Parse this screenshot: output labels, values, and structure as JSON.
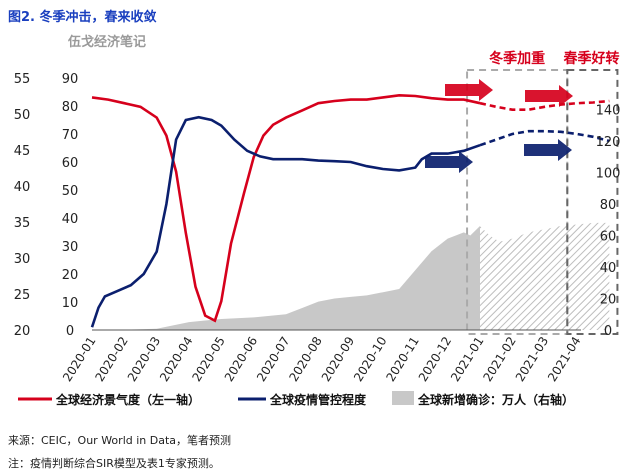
{
  "figure_title": "图2. 冬季冲击，春来收敛",
  "source": "来源：CEIC，Our World in Data，笔者预测",
  "footnote": "注：疫情判断综合SIR模型及表1专家预测。",
  "colors": {
    "pmi": "#d6001c",
    "stringency": "#0b1f6e",
    "cases": "#c8c8c8",
    "title": "#1a3fbf",
    "box": "#888888"
  },
  "chart_data": {
    "type": "line",
    "title": "",
    "watermark": "伍戈经济笔记",
    "x_labels": [
      "2020-01",
      "2020-02",
      "2020-03",
      "2020-04",
      "2020-05",
      "2020-06",
      "2020-07",
      "2020-08",
      "2020-09",
      "2020-10",
      "2020-11",
      "2020-12",
      "2021-01",
      "2021-02",
      "2021-03",
      "2021-04"
    ],
    "left_axis_1": {
      "ticks": [
        20,
        25,
        30,
        35,
        40,
        45,
        50,
        55
      ],
      "range": [
        20,
        55
      ]
    },
    "left_axis_2": {
      "ticks": [
        0,
        10,
        20,
        30,
        40,
        50,
        60,
        70,
        80,
        90
      ],
      "range": [
        0,
        90
      ]
    },
    "right_axis": {
      "ticks": [
        0,
        20,
        40,
        60,
        80,
        100,
        120,
        140
      ],
      "range": [
        0,
        160
      ]
    },
    "annotations": [
      {
        "text": "冬季加重",
        "region": [
          "2020-12",
          "2021-02"
        ]
      },
      {
        "text": "春季好转",
        "region": [
          "2021-03",
          "2021-04"
        ]
      }
    ],
    "legend_placement": "bottom",
    "legend": [
      {
        "name": "全球经济景气度（左一轴）",
        "style": "red line"
      },
      {
        "name": "全球疫情管控程度",
        "style": "navy line"
      },
      {
        "name": "全球新增确诊：万人（右轴）",
        "style": "gray area"
      }
    ],
    "series": [
      {
        "name": "全球经济景气度（左一轴）",
        "axis": "left_axis_1",
        "x": [
          0,
          0.5,
          1,
          1.5,
          2,
          2.3,
          2.6,
          2.9,
          3.2,
          3.5,
          3.8,
          4.0,
          4.3,
          4.7,
          5.0,
          5.3,
          5.6,
          6,
          6.5,
          7,
          7.5,
          8,
          8.5,
          9,
          9.5,
          10,
          10.5,
          11,
          11.5,
          12
        ],
        "y": [
          52.3,
          52.0,
          51.5,
          51.0,
          49.5,
          47.0,
          42.0,
          33.5,
          26.0,
          22.0,
          21.3,
          24.0,
          32.0,
          39.0,
          44.0,
          47.0,
          48.5,
          49.5,
          50.5,
          51.5,
          51.8,
          52.0,
          52.0,
          52.3,
          52.6,
          52.5,
          52.2,
          52.0,
          52.0,
          51.5
        ]
      },
      {
        "name": "全球经济景气度（预测）",
        "axis": "left_axis_1",
        "x": [
          12,
          12.5,
          13,
          13.5,
          14,
          14.5,
          15,
          15.5,
          16
        ],
        "y": [
          51.5,
          51.0,
          50.6,
          50.6,
          51.0,
          51.3,
          51.5,
          51.6,
          51.8
        ]
      },
      {
        "name": "全球疫情管控程度",
        "axis": "left_axis_2",
        "x": [
          0,
          0.2,
          0.4,
          0.8,
          1.2,
          1.6,
          2.0,
          2.3,
          2.6,
          2.9,
          3.3,
          3.7,
          4.0,
          4.4,
          4.8,
          5.2,
          5.6,
          6,
          6.5,
          7,
          7.5,
          8,
          8.5,
          9,
          9.5,
          10,
          10.2,
          10.5,
          11,
          11.5,
          12
        ],
        "y": [
          1,
          8,
          12,
          14,
          16,
          20,
          28,
          45,
          68,
          75,
          76,
          75,
          73,
          68,
          64,
          62,
          61,
          61,
          61,
          60.5,
          60.3,
          60,
          58.5,
          57.5,
          57,
          58,
          61,
          63,
          63,
          64,
          66
        ]
      },
      {
        "name": "全球疫情管控程度（预测）",
        "axis": "left_axis_2",
        "x": [
          12,
          12.5,
          13,
          13.5,
          14,
          14.5,
          15,
          15.5,
          16
        ],
        "y": [
          66,
          68,
          70,
          71,
          71,
          70.8,
          70,
          69,
          67.5
        ]
      },
      {
        "name": "全球新增确诊：万人（右轴）",
        "axis": "right_axis",
        "x": [
          0,
          1,
          2,
          3,
          3.5,
          4,
          5,
          6,
          6.5,
          7,
          7.5,
          8,
          8.5,
          9,
          9.5,
          10,
          10.5,
          11,
          11.5,
          11.7,
          12,
          12.3,
          12.6,
          13,
          13.5,
          14,
          14.5,
          15,
          15.5,
          16
        ],
        "y": [
          0,
          0.2,
          0.8,
          5,
          6,
          7,
          8,
          10,
          14,
          18,
          20,
          21,
          22,
          24,
          26,
          38,
          50,
          58,
          62,
          60,
          66,
          60,
          56,
          58,
          62,
          64,
          66,
          67,
          68,
          68
        ]
      }
    ]
  }
}
